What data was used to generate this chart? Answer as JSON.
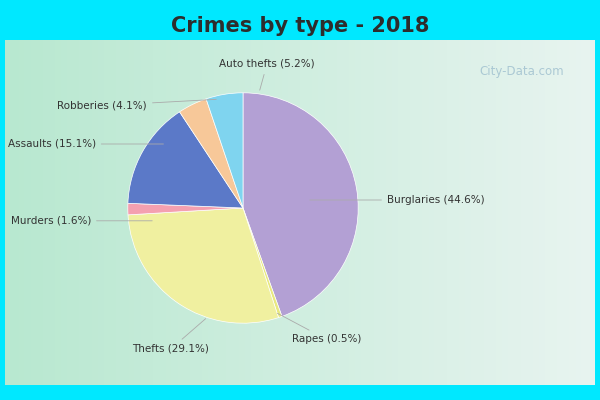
{
  "title": "Crimes by type - 2018",
  "title_fontsize": 15,
  "title_fontweight": "bold",
  "title_color": "#2d2d2d",
  "labels": [
    "Burglaries",
    "Rapes",
    "Thefts",
    "Murders",
    "Assaults",
    "Robberies",
    "Auto thefts"
  ],
  "values": [
    44.6,
    0.5,
    29.1,
    1.6,
    15.1,
    4.1,
    5.2
  ],
  "colors": [
    "#b3a0d4",
    "#f0f0a0",
    "#f0f0a0",
    "#f4a0b0",
    "#5b79c8",
    "#f7c899",
    "#7fd4ef"
  ],
  "pie_colors": [
    "#b3a0d4",
    "#e8e880",
    "#f0f0a0",
    "#f4a0b0",
    "#5b79c8",
    "#f7c899",
    "#7fd4ef"
  ],
  "bg_cyan": "#00e8ff",
  "bg_chart": "#c8e8d8",
  "watermark": "City-Data.com",
  "startangle": 90
}
